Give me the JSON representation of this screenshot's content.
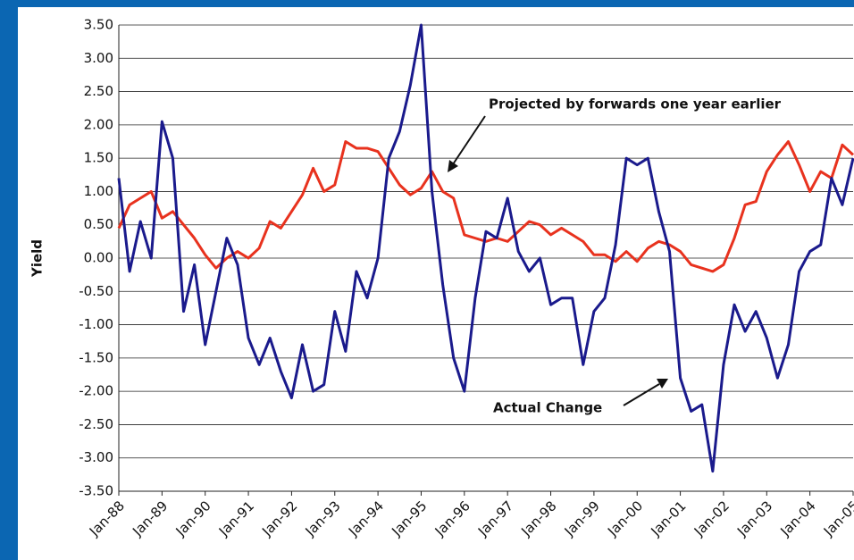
{
  "chart_data": {
    "type": "line",
    "y_label": "Yield",
    "categories": [
      "Jan-88",
      null,
      null,
      null,
      "Jan-89",
      null,
      null,
      null,
      "Jan-90",
      null,
      null,
      null,
      "Jan-91",
      null,
      null,
      null,
      "Jan-92",
      null,
      null,
      null,
      "Jan-93",
      null,
      null,
      null,
      "Jan-94",
      null,
      null,
      null,
      "Jan-95",
      null,
      null,
      null,
      "Jan-96",
      null,
      null,
      null,
      "Jan-97",
      null,
      null,
      null,
      "Jan-98",
      null,
      null,
      null,
      "Jan-99",
      null,
      null,
      null,
      "Jan-00",
      null,
      null,
      null,
      "Jan-01",
      null,
      null,
      null,
      "Jan-02",
      null,
      null,
      null,
      "Jan-03",
      null,
      null,
      null,
      "Jan-04",
      null,
      null,
      null,
      "Jan-05"
    ],
    "series": [
      {
        "name": "Actual Change",
        "color": "#1a1a8c",
        "values": [
          1.2,
          -0.2,
          0.55,
          0.0,
          2.05,
          1.5,
          -0.8,
          -0.1,
          -1.3,
          -0.5,
          0.3,
          -0.1,
          -1.2,
          -1.6,
          -1.2,
          -1.7,
          -2.1,
          -1.3,
          -2.0,
          -1.9,
          -0.8,
          -1.4,
          -0.2,
          -0.6,
          0.0,
          1.5,
          1.9,
          2.6,
          3.5,
          1.0,
          -0.4,
          -1.5,
          -2.0,
          -0.6,
          0.4,
          0.3,
          0.9,
          0.1,
          -0.2,
          0.0,
          -0.7,
          -0.6,
          -0.6,
          -1.6,
          -0.8,
          -0.6,
          0.2,
          1.5,
          1.4,
          1.5,
          0.7,
          0.1,
          -1.8,
          -2.3,
          -2.2,
          -3.2,
          -1.6,
          -0.7,
          -1.1,
          -0.8,
          -1.2,
          -1.8,
          -1.3,
          -0.2,
          0.1,
          0.2,
          1.2,
          0.8,
          1.5
        ]
      },
      {
        "name": "Projected by forwards one year earlier",
        "color": "#e8321e",
        "values": [
          0.45,
          0.8,
          0.9,
          1.0,
          0.6,
          0.7,
          0.5,
          0.3,
          0.05,
          -0.15,
          0.0,
          0.1,
          0.0,
          0.15,
          0.55,
          0.45,
          0.7,
          0.95,
          1.35,
          1.0,
          1.1,
          1.75,
          1.65,
          1.65,
          1.6,
          1.35,
          1.1,
          0.95,
          1.05,
          1.3,
          1.0,
          0.9,
          0.35,
          0.3,
          0.25,
          0.3,
          0.25,
          0.4,
          0.55,
          0.5,
          0.35,
          0.45,
          0.35,
          0.25,
          0.05,
          0.05,
          -0.05,
          0.1,
          -0.05,
          0.15,
          0.25,
          0.2,
          0.1,
          -0.1,
          -0.15,
          -0.2,
          -0.1,
          0.3,
          0.8,
          0.85,
          1.3,
          1.55,
          1.75,
          1.4,
          1.0,
          1.3,
          1.2,
          1.7,
          1.55
        ]
      }
    ],
    "ylim": [
      -3.5,
      3.5
    ],
    "yticks": [
      {
        "value": 3.5,
        "label": "3.50"
      },
      {
        "value": 3.0,
        "label": "3.00"
      },
      {
        "value": 2.5,
        "label": "2.50"
      },
      {
        "value": 2.0,
        "label": "2.00"
      },
      {
        "value": 1.5,
        "label": "1.50"
      },
      {
        "value": 1.0,
        "label": "1.00"
      },
      {
        "value": 0.5,
        "label": "0.50"
      },
      {
        "value": 0.0,
        "label": "0.00"
      },
      {
        "value": -0.5,
        "label": "-0.50"
      },
      {
        "value": -1.0,
        "label": "-1.00"
      },
      {
        "value": -1.5,
        "label": "-1.50"
      },
      {
        "value": -2.0,
        "label": "-2.00"
      },
      {
        "value": -2.5,
        "label": "-2.50"
      },
      {
        "value": -3.0,
        "label": "-3.00"
      },
      {
        "value": -3.5,
        "label": "-3.50"
      }
    ],
    "grid": true
  }
}
